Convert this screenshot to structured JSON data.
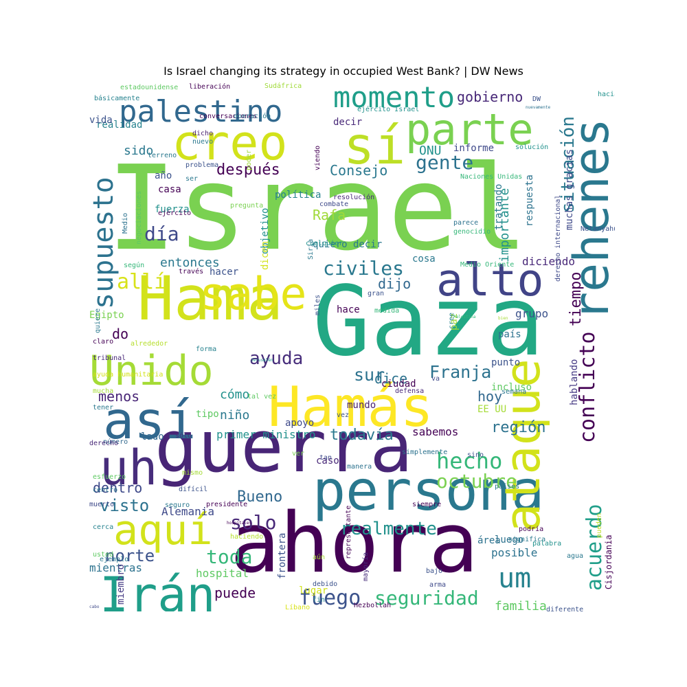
{
  "title": "Is Israel changing its strategy in occupied West Bank? | DW News",
  "words": [
    {
      "text": "Israel",
      "color": "#7ad151"
    },
    {
      "text": "Gaza",
      "color": "#22a884"
    },
    {
      "text": "ahora",
      "color": "#440154"
    },
    {
      "text": "guerra",
      "color": "#482576"
    },
    {
      "text": "Hamás",
      "color": "#fde725"
    },
    {
      "text": "persona",
      "color": "#2a788e"
    },
    {
      "text": "ataque",
      "color": "#d2e21b"
    },
    {
      "text": "Hama",
      "color": "#d2e21b"
    },
    {
      "text": "así",
      "color": "#31688e"
    },
    {
      "text": "rehenes",
      "color": "#2a788e"
    },
    {
      "text": "creo",
      "color": "#d2e21b"
    },
    {
      "text": "sí",
      "color": "#bddf26"
    },
    {
      "text": "parte",
      "color": "#7ad151"
    },
    {
      "text": "sabe",
      "color": "#e5e419"
    },
    {
      "text": "alto",
      "color": "#414487"
    },
    {
      "text": "Unido",
      "color": "#a5db36"
    },
    {
      "text": "uh",
      "color": "#472d7b"
    },
    {
      "text": "aquí",
      "color": "#d2e21b"
    },
    {
      "text": "Irán",
      "color": "#1f9e89"
    },
    {
      "text": "palestino",
      "color": "#31688e"
    },
    {
      "text": "momento",
      "color": "#1f9e89"
    },
    {
      "text": "supuesto",
      "color": "#2c728e"
    },
    {
      "text": "conflicto",
      "color": "#440154"
    },
    {
      "text": "acuerdo",
      "color": "#1f9e89"
    },
    {
      "text": "um",
      "color": "#26828e"
    },
    {
      "text": "hecho",
      "color": "#35b779"
    },
    {
      "text": "octubre",
      "color": "#7ad151"
    },
    {
      "text": "realmente",
      "color": "#21918c"
    },
    {
      "text": "seguridad",
      "color": "#35b779"
    },
    {
      "text": "fuego",
      "color": "#3b528b"
    },
    {
      "text": "situación",
      "color": "#2a788e"
    },
    {
      "text": "después",
      "color": "#440154"
    },
    {
      "text": "día",
      "color": "#3e4989"
    },
    {
      "text": "civiles",
      "color": "#2a788e"
    },
    {
      "text": "allí",
      "color": "#d8e219"
    },
    {
      "text": "ayuda",
      "color": "#472d7b"
    },
    {
      "text": "Franja",
      "color": "#2c728e"
    },
    {
      "text": "gente",
      "color": "#2c728e"
    },
    {
      "text": "Bueno",
      "color": "#31688e"
    },
    {
      "text": "solo",
      "color": "#482878"
    },
    {
      "text": "toda",
      "color": "#35b779"
    },
    {
      "text": "norte",
      "color": "#3b528b"
    },
    {
      "text": "dentro",
      "color": "#3e4989"
    },
    {
      "text": "visto",
      "color": "#2c728e"
    },
    {
      "text": "región",
      "color": "#2c728e"
    },
    {
      "text": "todavía",
      "color": "#2a788e"
    },
    {
      "text": "sur",
      "color": "#2c728e"
    },
    {
      "text": "tiempo",
      "color": "#440154"
    },
    {
      "text": "Consejo",
      "color": "#2a788e"
    },
    {
      "text": "gobierno",
      "color": "#482878"
    },
    {
      "text": "importante",
      "color": "#21918c"
    },
    {
      "text": "familia",
      "color": "#5ec962"
    },
    {
      "text": "entonces",
      "color": "#2a788e"
    },
    {
      "text": "dijo",
      "color": "#31688e"
    },
    {
      "text": "dice",
      "color": "#2c728e"
    },
    {
      "text": "puede",
      "color": "#440154"
    },
    {
      "text": "hoy",
      "color": "#31688e"
    },
    {
      "text": "Rafa",
      "color": "#a0da39"
    },
    {
      "text": "cómo",
      "color": "#21918c"
    },
    {
      "text": "niño",
      "color": "#2a788e"
    },
    {
      "text": "menos",
      "color": "#482576"
    },
    {
      "text": "sido",
      "color": "#2a788e"
    },
    {
      "text": "ONU",
      "color": "#21918c"
    },
    {
      "text": "do",
      "color": "#440154"
    },
    {
      "text": "mientras",
      "color": "#2c728e"
    },
    {
      "text": "posible",
      "color": "#2c728e"
    },
    {
      "text": "diciendo",
      "color": "#482878"
    },
    {
      "text": "grupo",
      "color": "#3b528b"
    },
    {
      "text": "hospital",
      "color": "#5ec962"
    },
    {
      "text": "primer ministro",
      "color": "#21918c"
    },
    {
      "text": "sabemos",
      "color": "#440154"
    },
    {
      "text": "muchas gracias",
      "color": "#3e4989"
    },
    {
      "text": "respuesta",
      "color": "#2c728e"
    },
    {
      "text": "tratando",
      "color": "#2a788e"
    },
    {
      "text": "Cisjordania",
      "color": "#440154"
    },
    {
      "text": "Alemania",
      "color": "#3e4989"
    },
    {
      "text": "Egipto",
      "color": "#7ad151"
    },
    {
      "text": "hablando",
      "color": "#443983"
    },
    {
      "text": "luego",
      "color": "#2c728e"
    },
    {
      "text": "hacer",
      "color": "#3b528b"
    },
    {
      "text": "frontera",
      "color": "#3b528b"
    },
    {
      "text": "ciudad",
      "color": "#440154"
    },
    {
      "text": "realidad",
      "color": "#26828e"
    },
    {
      "text": "vida",
      "color": "#3b528b"
    },
    {
      "text": "decir",
      "color": "#482878"
    },
    {
      "text": "informe",
      "color": "#3e4989"
    },
    {
      "text": "punto",
      "color": "#3b528b"
    },
    {
      "text": "incluso",
      "color": "#5ec962"
    },
    {
      "text": "EE UU",
      "color": "#a5db36"
    },
    {
      "text": "tipo",
      "color": "#5ec962"
    },
    {
      "text": "lado",
      "color": "#31688e"
    },
    {
      "text": "caso",
      "color": "#482878"
    },
    {
      "text": "hace",
      "color": "#440154"
    },
    {
      "text": "mundo",
      "color": "#481f70"
    },
    {
      "text": "apoyo",
      "color": "#3e4989"
    },
    {
      "text": "miembro",
      "color": "#443983"
    },
    {
      "text": "cosa",
      "color": "#2a788e"
    },
    {
      "text": "país",
      "color": "#2c728e"
    },
    {
      "text": "paz",
      "color": "#a0da39"
    },
    {
      "text": "política",
      "color": "#26828e"
    },
    {
      "text": "año",
      "color": "#3b528b"
    },
    {
      "text": "casa",
      "color": "#440154"
    },
    {
      "text": "fuerza",
      "color": "#21918c"
    },
    {
      "text": "lugar",
      "color": "#d2e21b"
    },
    {
      "text": "área",
      "color": "#2c728e"
    },
    {
      "text": "objetivo",
      "color": "#21918c"
    },
    {
      "text": "quiero decir",
      "color": "#2a788e"
    },
    {
      "text": "dicen",
      "color": "#d2e21b"
    },
    {
      "text": "Líbano",
      "color": "#d8e219"
    },
    {
      "text": "Hezbollah",
      "color": "#440154"
    },
    {
      "text": "diferente",
      "color": "#3b528b"
    },
    {
      "text": "estadounidense",
      "color": "#5ec962"
    },
    {
      "text": "liberación",
      "color": "#440154"
    },
    {
      "text": "Sudáfrica",
      "color": "#a0da39"
    },
    {
      "text": "básicamente",
      "color": "#26828e"
    },
    {
      "text": "hacia",
      "color": "#21918c"
    },
    {
      "text": "DW",
      "color": "#3b528b"
    },
    {
      "text": "nuevamente",
      "color": "#2c728e"
    },
    {
      "text": "conversaciones",
      "color": "#440154"
    },
    {
      "text": "operación",
      "color": "#2a788e"
    },
    {
      "text": "ejército Israel",
      "color": "#21918c"
    },
    {
      "text": "dicho",
      "color": "#481f70"
    },
    {
      "text": "nuevo",
      "color": "#2a788e"
    },
    {
      "text": "poder",
      "color": "#a0da39"
    },
    {
      "text": "terreno",
      "color": "#2a788e"
    },
    {
      "text": "solución",
      "color": "#21918c"
    },
    {
      "text": "problema",
      "color": "#3b528b"
    },
    {
      "text": "viendo",
      "color": "#440154"
    },
    {
      "text": "ser",
      "color": "#2a788e"
    },
    {
      "text": "Naciones Unidas",
      "color": "#35b779"
    },
    {
      "text": "resolución",
      "color": "#482878"
    },
    {
      "text": "Medio",
      "color": "#2c728e"
    },
    {
      "text": "negociaciones",
      "color": "#5ec962"
    },
    {
      "text": "pregunta",
      "color": "#7ad151"
    },
    {
      "text": "combate",
      "color": "#3e4989"
    },
    {
      "text": "ejército",
      "color": "#440154"
    },
    {
      "text": "genocidio",
      "color": "#35b779"
    },
    {
      "text": "parece",
      "color": "#2c728e"
    },
    {
      "text": "Netanyahu",
      "color": "#3b528b"
    },
    {
      "text": "cualquier",
      "color": "#21918c"
    },
    {
      "text": "Siria",
      "color": "#2a788e"
    },
    {
      "text": "según",
      "color": "#35b779"
    },
    {
      "text": "través",
      "color": "#440154"
    },
    {
      "text": "miles",
      "color": "#3b528b"
    },
    {
      "text": "Medio Oriente",
      "color": "#35b779"
    },
    {
      "text": "derecho internacional",
      "color": "#3e4989"
    },
    {
      "text": "gran",
      "color": "#3b528b"
    },
    {
      "text": "medida",
      "color": "#35b779"
    },
    {
      "text": "cree",
      "color": "#26828e"
    },
    {
      "text": "Palestina",
      "color": "#35b779"
    },
    {
      "text": "bien",
      "color": "#a5db36"
    },
    {
      "text": "quiere",
      "color": "#2a788e"
    },
    {
      "text": "alrededor",
      "color": "#b5de2b"
    },
    {
      "text": "forma",
      "color": "#26828e"
    },
    {
      "text": "vez",
      "color": "#3b528b"
    },
    {
      "text": "Jerusalén",
      "color": "#21918c"
    },
    {
      "text": "va",
      "color": "#3e4989"
    },
    {
      "text": "defensa",
      "color": "#482878"
    },
    {
      "text": "tal vez",
      "color": "#5ec962"
    },
    {
      "text": "centro",
      "color": "#2a788e"
    },
    {
      "text": "presidente",
      "color": "#440154"
    },
    {
      "text": "semana",
      "color": "#2a788e"
    },
    {
      "text": "número",
      "color": "#31688e"
    },
    {
      "text": "sólo",
      "color": "#472d7b"
    },
    {
      "text": "esfuerzo",
      "color": "#5ec962"
    },
    {
      "text": "difícil",
      "color": "#3b528b"
    },
    {
      "text": "sino",
      "color": "#3b528b"
    },
    {
      "text": "muerto",
      "color": "#3e4989"
    },
    {
      "text": "seguro",
      "color": "#2a788e"
    },
    {
      "text": "países",
      "color": "#2a788e"
    },
    {
      "text": "siempre",
      "color": "#440154"
    },
    {
      "text": "derecho",
      "color": "#482878"
    },
    {
      "text": "ver",
      "color": "#7ad151"
    },
    {
      "text": "simplemente",
      "color": "#2c728e"
    },
    {
      "text": "mismo",
      "color": "#a5db36"
    },
    {
      "text": "tan",
      "color": "#3e4989"
    },
    {
      "text": "manera",
      "color": "#2c728e"
    },
    {
      "text": "podría",
      "color": "#440154"
    },
    {
      "text": "pueden",
      "color": "#bddf26"
    },
    {
      "text": "cerca",
      "color": "#26828e"
    },
    {
      "text": "haciendo",
      "color": "#b5de2b"
    },
    {
      "text": "hospitales",
      "color": "#440154"
    },
    {
      "text": "significa",
      "color": "#2a788e"
    },
    {
      "text": "aún",
      "color": "#a5db36"
    },
    {
      "text": "representante",
      "color": "#440154"
    },
    {
      "text": "agua",
      "color": "#2a788e"
    },
    {
      "text": "debido",
      "color": "#3b528b"
    },
    {
      "text": "ejemplo",
      "color": "#2a788e"
    },
    {
      "text": "arma",
      "color": "#3e4989"
    },
    {
      "text": "bajo",
      "color": "#3b528b"
    },
    {
      "text": "fin",
      "color": "#26828e"
    },
    {
      "text": "mayoría",
      "color": "#472d7b"
    },
    {
      "text": "palabra",
      "color": "#21918c"
    },
    {
      "text": "cabo",
      "color": "#3e4989"
    },
    {
      "text": "usted",
      "color": "#5ec962"
    },
    {
      "text": "claro",
      "color": "#440154"
    },
    {
      "text": "tribunal",
      "color": "#482878"
    },
    {
      "text": "ayuda humanitaria",
      "color": "#d2e21b"
    },
    {
      "text": "mucha",
      "color": "#a5db36"
    },
    {
      "text": "tener",
      "color": "#2a788e"
    }
  ]
}
